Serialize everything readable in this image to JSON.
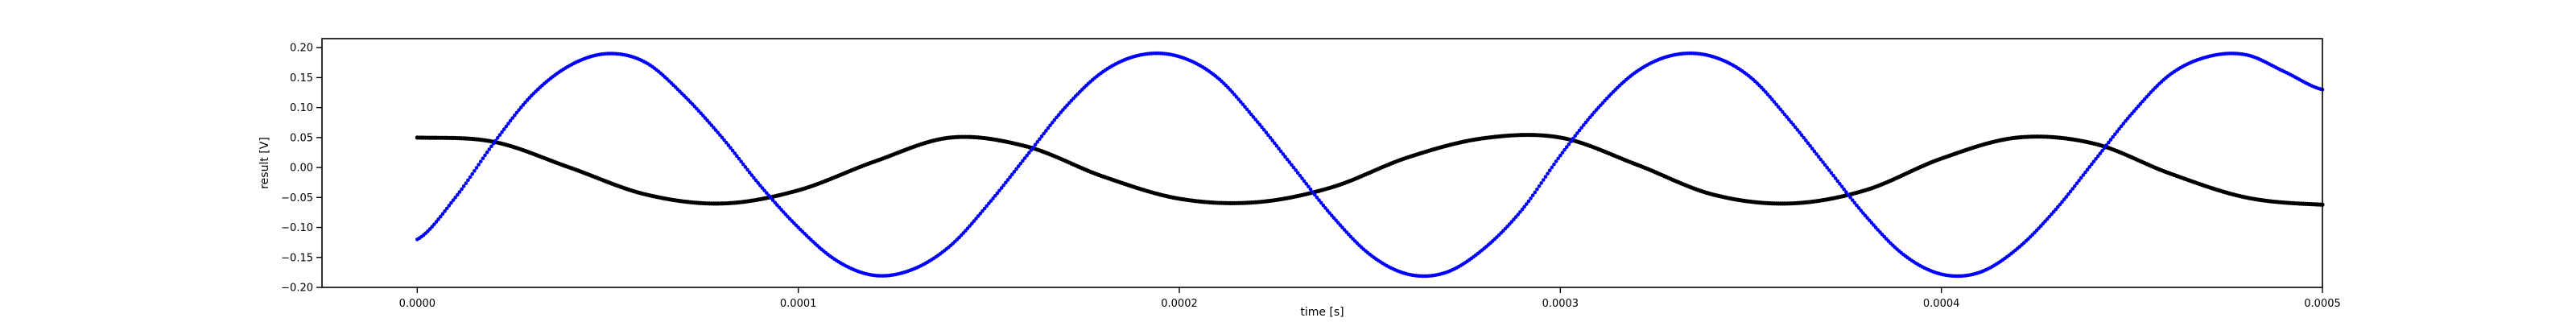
{
  "chart_data": {
    "type": "scatter",
    "title": "",
    "xlabel": "time [s]",
    "ylabel": "result [V]",
    "xlim": [
      -2.5e-05,
      0.0005
    ],
    "ylim": [
      -0.2,
      0.215
    ],
    "grid": false,
    "x_ticks": [
      0,
      0.0001,
      0.0002,
      0.0003,
      0.0004,
      0.0005
    ],
    "x_tick_labels": [
      "0.0000",
      "0.0001",
      "0.0002",
      "0.0003",
      "0.0004",
      "0.0005"
    ],
    "y_ticks": [
      -0.2,
      -0.15,
      -0.1,
      -0.05,
      0,
      0.05,
      0.1,
      0.15,
      0.2
    ],
    "y_tick_labels": [
      "−0.20",
      "−0.15",
      "−0.10",
      "−0.05",
      "0.00",
      "0.05",
      "0.10",
      "0.15",
      "0.20"
    ],
    "series": [
      {
        "color": "#000000",
        "marker": "dot",
        "x": [
          0.0,
          2e-05,
          4e-05,
          6e-05,
          8e-05,
          0.0001,
          0.00012,
          0.00014,
          0.00016,
          0.00018,
          0.0002,
          0.00022,
          0.00024,
          0.00026,
          0.00028,
          0.0003,
          0.00032,
          0.00034,
          0.00036,
          0.00038,
          0.0004,
          0.00042,
          0.00044,
          0.00046,
          0.00048,
          0.0005
        ],
        "y": [
          0.05,
          0.043,
          0.0,
          -0.045,
          -0.06,
          -0.038,
          0.01,
          0.05,
          0.035,
          -0.015,
          -0.052,
          -0.058,
          -0.033,
          0.017,
          0.049,
          0.05,
          0.005,
          -0.045,
          -0.06,
          -0.038,
          0.015,
          0.05,
          0.04,
          -0.01,
          -0.05,
          -0.062
        ]
      },
      {
        "color": "#0000ff",
        "marker": "dot",
        "x": [
          0.0,
          1e-05,
          2e-05,
          3e-05,
          4e-05,
          5e-05,
          6e-05,
          7e-05,
          8e-05,
          9e-05,
          0.0001,
          0.00011,
          0.00012,
          0.00013,
          0.00014,
          0.00015,
          0.00016,
          0.00017,
          0.00018,
          0.00019,
          0.0002,
          0.00021,
          0.00022,
          0.00023,
          0.00024,
          0.00025,
          0.00026,
          0.00027,
          0.00028,
          0.00029,
          0.0003,
          0.00031,
          0.00032,
          0.00033,
          0.00034,
          0.00035,
          0.00036,
          0.00037,
          0.00038,
          0.00039,
          0.0004,
          0.00041,
          0.00042,
          0.00043,
          0.00044,
          0.00045,
          0.00046,
          0.00047,
          0.00048,
          0.00049,
          0.0005
        ],
        "y": [
          -0.12,
          -0.05,
          0.04,
          0.12,
          0.17,
          0.19,
          0.175,
          0.12,
          0.05,
          -0.03,
          -0.1,
          -0.155,
          -0.18,
          -0.17,
          -0.13,
          -0.06,
          0.02,
          0.1,
          0.16,
          0.188,
          0.185,
          0.15,
          0.08,
          0.0,
          -0.08,
          -0.145,
          -0.178,
          -0.175,
          -0.135,
          -0.07,
          0.02,
          0.1,
          0.16,
          0.188,
          0.185,
          0.15,
          0.08,
          0.0,
          -0.08,
          -0.145,
          -0.178,
          -0.175,
          -0.135,
          -0.07,
          0.01,
          0.09,
          0.155,
          0.185,
          0.188,
          0.16,
          0.13
        ]
      }
    ]
  }
}
